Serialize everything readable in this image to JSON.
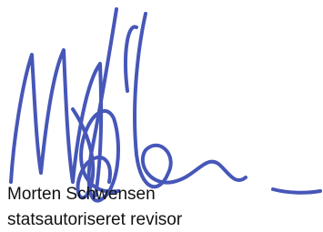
{
  "signature": {
    "name": "Morten Schwensen",
    "title": "statsautoriseret revisor"
  }
}
